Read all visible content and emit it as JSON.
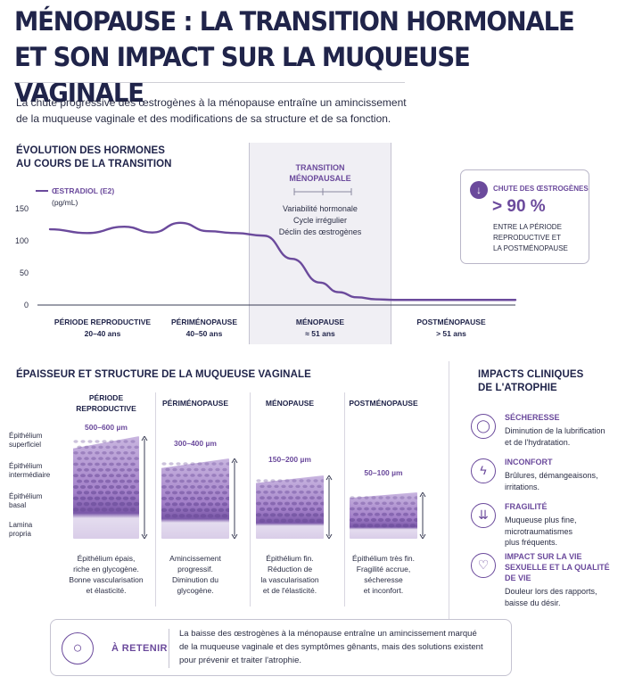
{
  "title": {
    "line1": "MÉNOPAUSE : LA TRANSITION HORMONALE",
    "line2": "ET SON IMPACT SUR LA MUQUEUSE VAGINALE"
  },
  "intro": {
    "line1": "La chute progressive des œstrogènes à la ménopause entraîne un amincissement",
    "line2": "de la muqueuse vaginale et des modifications de sa structure et de sa fonction."
  },
  "hormones": {
    "heading_line1": "ÉVOLUTION DES HORMONES",
    "heading_line2": "AU COURS DE LA TRANSITION"
  },
  "transition": {
    "title_line1": "TRANSITION",
    "title_line2": "MÉNOPAUSALE",
    "items": [
      "Variabilité hormonale",
      "Cycle irrégulier",
      "Déclin des œstrogènes"
    ]
  },
  "stat": {
    "icon": "arrow-down-icon",
    "label": "CHUTE DES ŒSTROGÈNES",
    "value": "> 90 %",
    "desc_line1": "ENTRE LA PÉRIODE",
    "desc_line2": "REPRODUCTIVE ET",
    "desc_line3": "LA POSTMÉNOPAUSE"
  },
  "chart_data": {
    "type": "line",
    "series": [
      {
        "name": "ŒSTRADIOL (E2)",
        "x": [
          0,
          8,
          16,
          22,
          28,
          34,
          40,
          46,
          52,
          58,
          62,
          66,
          70,
          74,
          78,
          84,
          90,
          96,
          100
        ],
        "y": [
          118,
          112,
          122,
          113,
          128,
          115,
          112,
          108,
          72,
          35,
          20,
          12,
          9,
          8,
          8,
          8,
          8,
          8,
          8
        ]
      }
    ],
    "unit": "(pg/mL)",
    "yticks": [
      0,
      50,
      100,
      150
    ],
    "ylim": [
      0,
      160
    ],
    "xlim": [
      0,
      100
    ],
    "color": "#6b4a9c",
    "categories": [
      {
        "name": "PÉRIODE REPRODUCTIVE",
        "range": "20–40 ans"
      },
      {
        "name": "PÉRIMÉNOPAUSE",
        "range": "40–50 ans"
      },
      {
        "name": "MÉNOPAUSE",
        "range": "≈ 51 ans"
      },
      {
        "name": "POSTMÉNOPAUSE",
        "range": "> 51 ans"
      }
    ]
  },
  "mucosa": {
    "heading": "ÉPAISSEUR ET STRUCTURE DE LA MUQUEUSE VAGINALE",
    "layers": [
      {
        "line1": "Épithélium",
        "line2": "superficiel"
      },
      {
        "line1": "Épithélium",
        "line2": "intermédiaire"
      },
      {
        "line1": "Épithélium",
        "line2": "basal"
      },
      {
        "line1": "Lamina",
        "line2": "propria"
      }
    ],
    "stages": [
      {
        "title_line1": "PÉRIODE",
        "title_line2": "REPRODUCTIVE",
        "thickness": "500–600 µm",
        "relative_thickness": 1.0,
        "desc": [
          "Épithélium épais,",
          "riche en glycogène.",
          "Bonne vascularisation",
          "et élasticité."
        ]
      },
      {
        "title_line1": "PÉRIMÉNOPAUSE",
        "title_line2": "",
        "thickness": "300–400 µm",
        "relative_thickness": 0.78,
        "desc": [
          "Amincissement",
          "progressif.",
          "Diminution du",
          "glycogène."
        ]
      },
      {
        "title_line1": "MÉNOPAUSE",
        "title_line2": "",
        "thickness": "150–200 µm",
        "relative_thickness": 0.62,
        "desc": [
          "Épithélium fin.",
          "Réduction de",
          "la vascularisation",
          "et de l'élasticité."
        ]
      },
      {
        "title_line1": "POSTMÉNOPAUSE",
        "title_line2": "",
        "thickness": "50–100 µm",
        "relative_thickness": 0.45,
        "desc": [
          "Épithélium très fin.",
          "Fragilité accrue,",
          "sécheresse",
          "et inconfort."
        ]
      }
    ]
  },
  "impacts": {
    "heading_line1": "IMPACTS CLINIQUES",
    "heading_line2": "DE L'ATROPHIE",
    "items": [
      {
        "icon": "droplet-icon",
        "title": [
          "SÉCHERESSE"
        ],
        "text": [
          "Diminution de la lubrification",
          "et de l'hydratation."
        ]
      },
      {
        "icon": "lightning-icon",
        "title": [
          "INCONFORT"
        ],
        "text": [
          "Brûlures, démangeaisons,",
          "irritations."
        ]
      },
      {
        "icon": "arrows-down-icon",
        "title": [
          "FRAGILITÉ"
        ],
        "text": [
          "Muqueuse plus fine,",
          "microtraumatismes",
          "plus fréquents."
        ]
      },
      {
        "icon": "heart-icon",
        "title": [
          "IMPACT SUR LA VIE",
          "SEXUELLE ET LA QUALITÉ",
          "DE VIE"
        ],
        "text": [
          "Douleur lors des rapports,",
          "baisse du désir."
        ]
      }
    ]
  },
  "retenir": {
    "icon": "lightbulb-icon",
    "label": "À RETENIR",
    "line1": "La baisse des œstrogènes à la ménopause entraîne un amincissement marqué",
    "line2": "de la muqueuse vaginale et des symptômes gênants, mais des solutions existent",
    "line3": "pour prévenir et traiter l'atrophie."
  }
}
